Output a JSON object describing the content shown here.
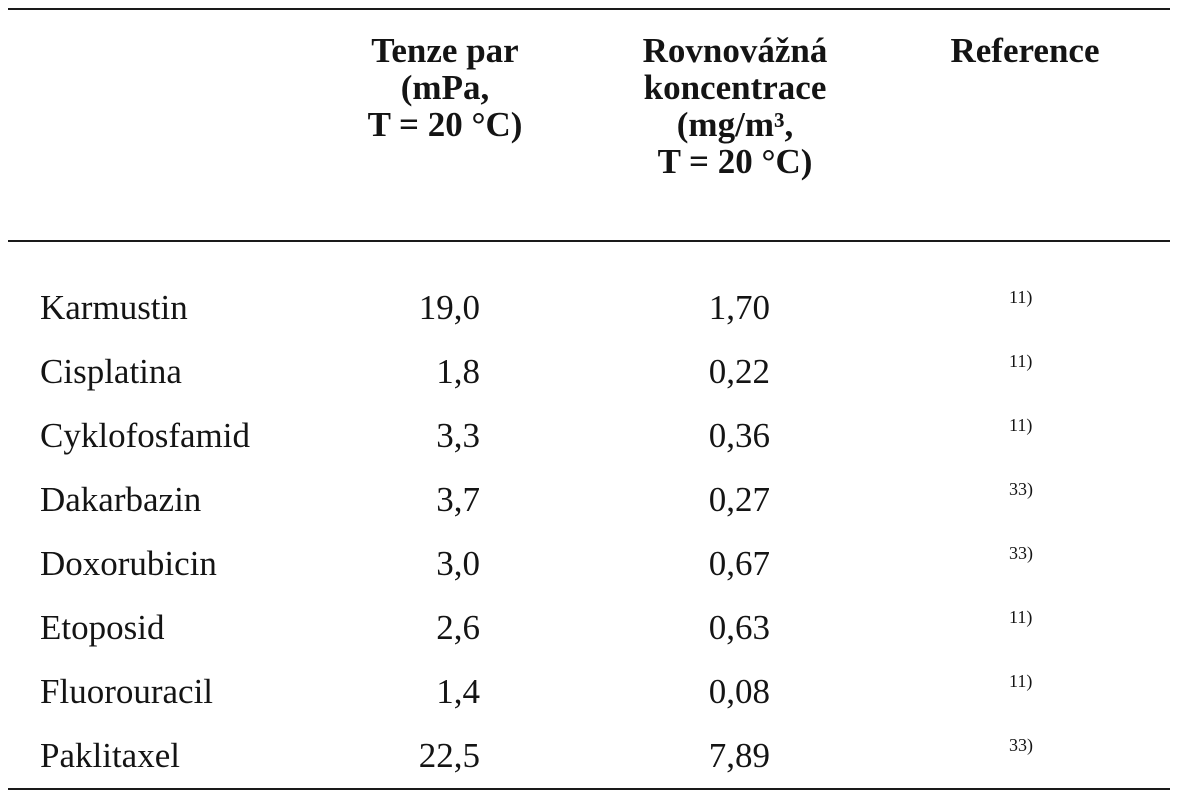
{
  "headers": {
    "vapor_pressure": [
      "Tenze par",
      "(mPa,",
      "T = 20 °C)"
    ],
    "concentration": [
      "Rovnovážná",
      "koncentrace",
      "(mg/m³,",
      "T = 20 °C)"
    ],
    "reference": "Reference"
  },
  "rows": [
    {
      "name": "Karmustin",
      "vapor_pressure": "19,0",
      "concentration": "1,70",
      "reference": "11)"
    },
    {
      "name": "Cisplatina",
      "vapor_pressure": "1,8",
      "concentration": "0,22",
      "reference": "11)"
    },
    {
      "name": "Cyklofosfamid",
      "vapor_pressure": "3,3",
      "concentration": "0,36",
      "reference": "11)"
    },
    {
      "name": "Dakarbazin",
      "vapor_pressure": "3,7",
      "concentration": "0,27",
      "reference": "33)"
    },
    {
      "name": "Doxorubicin",
      "vapor_pressure": "3,0",
      "concentration": "0,67",
      "reference": "33)"
    },
    {
      "name": "Etoposid",
      "vapor_pressure": "2,6",
      "concentration": "0,63",
      "reference": "11)"
    },
    {
      "name": "Fluorouracil",
      "vapor_pressure": "1,4",
      "concentration": "0,08",
      "reference": "11)"
    },
    {
      "name": "Paklitaxel",
      "vapor_pressure": "22,5",
      "concentration": "7,89",
      "reference": "33)"
    }
  ]
}
